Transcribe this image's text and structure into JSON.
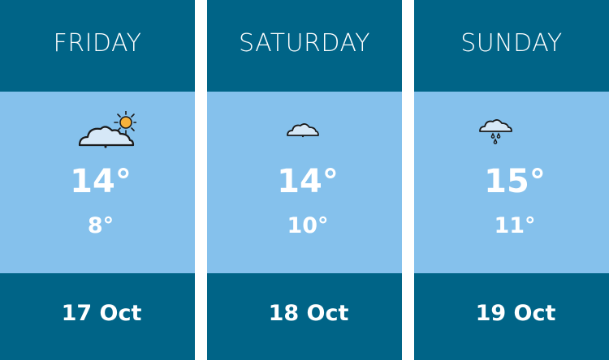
{
  "colors": {
    "header": "#006487",
    "body": "#85c1ec",
    "text": "#ffffff",
    "sun": "#f7b23b",
    "cloud_fill": "#d6e8f7"
  },
  "days": [
    {
      "name": "FRIDAY",
      "icon": "partly-cloudy-icon",
      "high": "14°",
      "low": "8°",
      "date": "17 Oct"
    },
    {
      "name": "SATURDAY",
      "icon": "cloud-icon",
      "high": "14°",
      "low": "10°",
      "date": "18 Oct"
    },
    {
      "name": "SUNDAY",
      "icon": "rain-cloud-icon",
      "high": "15°",
      "low": "11°",
      "date": "19 Oct"
    }
  ]
}
